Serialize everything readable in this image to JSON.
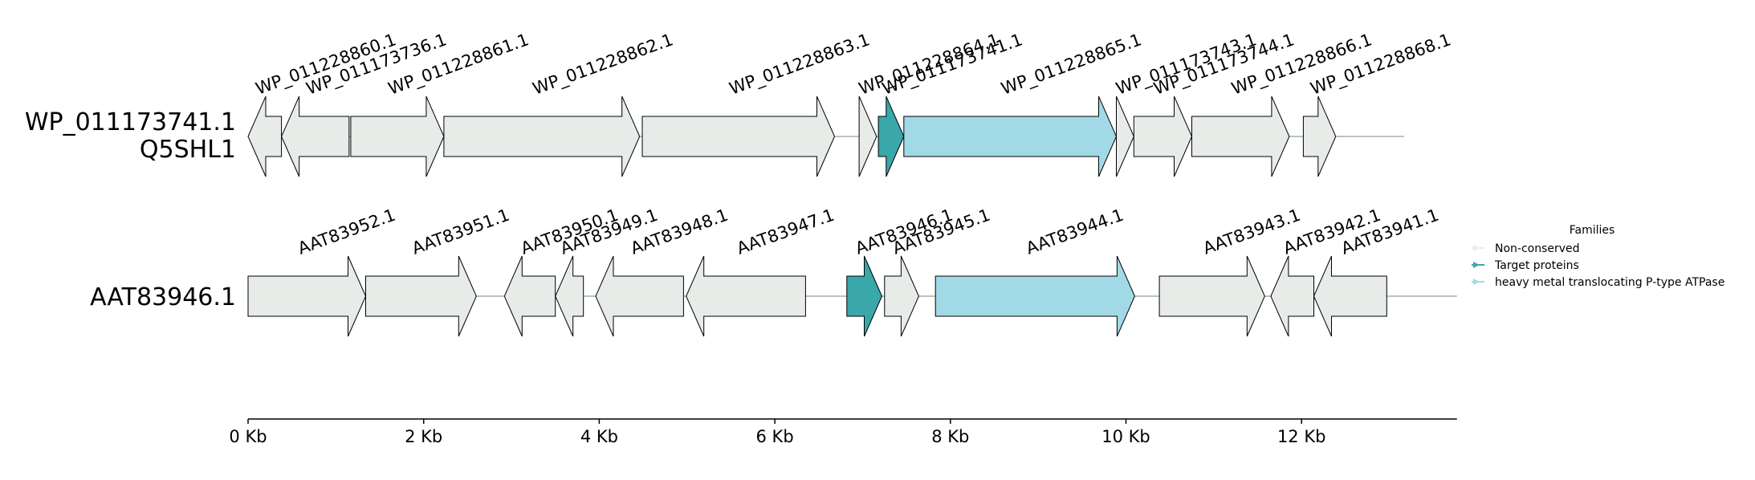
{
  "chart_data": {
    "type": "gene-neighborhood",
    "x_unit": "Kb",
    "x_ticks": [
      0,
      2,
      4,
      6,
      8,
      10,
      12
    ],
    "x_tick_labels": [
      "0 Kb",
      "2 Kb",
      "4 Kb",
      "6 Kb",
      "8 Kb",
      "10 Kb",
      "12 Kb"
    ],
    "xlim": [
      0,
      13.77
    ],
    "colors": {
      "non_conserved": "#e8ece9",
      "target": "#3aa7aa",
      "atpase": "#a1dae6",
      "backbone": "#808080"
    },
    "legend": {
      "title": "Families",
      "items": [
        {
          "label": "Non-conserved",
          "color": "#e8ece9"
        },
        {
          "label": "Target proteins",
          "color": "#3aa7aa"
        },
        {
          "label": "heavy metal translocating P-type ATPase",
          "color": "#a1dae6"
        }
      ]
    },
    "tracks": [
      {
        "labels": [
          "WP_011173741.1",
          "Q5SHL1"
        ],
        "span_end_kb": 13.17,
        "genes": [
          {
            "name": "WP_011228860.1",
            "start": 0.0,
            "end": 0.38,
            "strand": -1,
            "family": "non_conserved"
          },
          {
            "name": "WP_011173736.1",
            "start": 0.38,
            "end": 1.15,
            "strand": -1,
            "family": "non_conserved"
          },
          {
            "name": "WP_011228861.1",
            "start": 1.17,
            "end": 2.23,
            "strand": 1,
            "family": "non_conserved"
          },
          {
            "name": "WP_011228862.1",
            "start": 2.23,
            "end": 4.46,
            "strand": 1,
            "family": "non_conserved"
          },
          {
            "name": "WP_011228863.1",
            "start": 4.49,
            "end": 6.68,
            "strand": 1,
            "family": "non_conserved"
          },
          {
            "name": "WP_011228864.1",
            "start": 6.96,
            "end": 7.16,
            "strand": 1,
            "family": "non_conserved"
          },
          {
            "name": "WP_011173741.1",
            "start": 7.18,
            "end": 7.47,
            "strand": 1,
            "family": "target"
          },
          {
            "name": "WP_011228865.1",
            "start": 7.47,
            "end": 9.89,
            "strand": 1,
            "family": "atpase"
          },
          {
            "name": "WP_011173743.1",
            "start": 9.89,
            "end": 10.09,
            "strand": 1,
            "family": "non_conserved"
          },
          {
            "name": "WP_011173744.1",
            "start": 10.09,
            "end": 10.75,
            "strand": 1,
            "family": "non_conserved"
          },
          {
            "name": "WP_011228866.1",
            "start": 10.75,
            "end": 11.86,
            "strand": 1,
            "family": "non_conserved"
          },
          {
            "name": "WP_011228868.1",
            "start": 12.02,
            "end": 12.39,
            "strand": 1,
            "family": "non_conserved"
          }
        ]
      },
      {
        "labels": [
          "AAT83946.1"
        ],
        "span_end_kb": 13.77,
        "genes": [
          {
            "name": "AAT83952.1",
            "start": 0.0,
            "end": 1.34,
            "strand": 1,
            "family": "non_conserved"
          },
          {
            "name": "AAT83951.1",
            "start": 1.34,
            "end": 2.6,
            "strand": 1,
            "family": "non_conserved"
          },
          {
            "name": "AAT83950.1",
            "start": 2.92,
            "end": 3.5,
            "strand": -1,
            "family": "non_conserved"
          },
          {
            "name": "AAT83949.1",
            "start": 3.5,
            "end": 3.82,
            "strand": -1,
            "family": "non_conserved"
          },
          {
            "name": "AAT83948.1",
            "start": 3.96,
            "end": 4.96,
            "strand": -1,
            "family": "non_conserved"
          },
          {
            "name": "AAT83947.1",
            "start": 4.99,
            "end": 6.35,
            "strand": -1,
            "family": "non_conserved"
          },
          {
            "name": "AAT83946.1",
            "start": 6.82,
            "end": 7.22,
            "strand": 1,
            "family": "target"
          },
          {
            "name": "AAT83945.1",
            "start": 7.25,
            "end": 7.64,
            "strand": 1,
            "family": "non_conserved"
          },
          {
            "name": "AAT83944.1",
            "start": 7.83,
            "end": 10.1,
            "strand": 1,
            "family": "atpase"
          },
          {
            "name": "AAT83943.1",
            "start": 10.38,
            "end": 11.58,
            "strand": 1,
            "family": "non_conserved"
          },
          {
            "name": "AAT83942.1",
            "start": 11.65,
            "end": 12.14,
            "strand": -1,
            "family": "non_conserved"
          },
          {
            "name": "AAT83941.1",
            "start": 12.14,
            "end": 12.97,
            "strand": -1,
            "family": "non_conserved"
          }
        ]
      }
    ]
  }
}
